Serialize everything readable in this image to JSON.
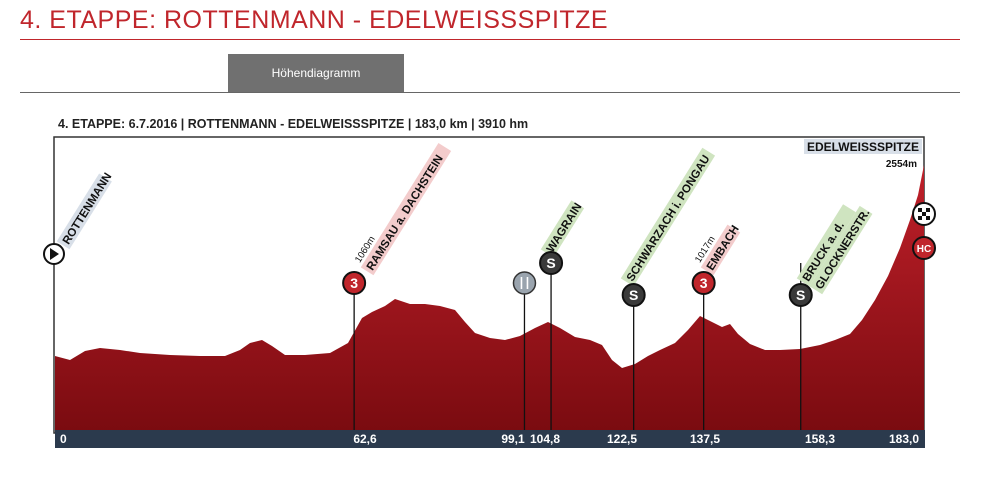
{
  "page_title": "4. ETAPPE: ROTTENMANN - EDELWEISSSPITZE",
  "tabs": [
    {
      "label": "Höhendiagramm",
      "active": true
    }
  ],
  "profile": {
    "header": "4. ETAPPE: 6.7.2016 | ROTTENMANN - EDELWEISSSPITZE | 183,0 km | 3910 hm",
    "summit": {
      "label": "EDELWEISSSPITZE",
      "elevation": "2554m"
    },
    "total_km": 183.0,
    "colors": {
      "profile_dark": "#8b0f14",
      "profile_mid": "#c0202a",
      "axis_bar": "#2b3a4d",
      "marker_red": "#c0262c",
      "marker_dark": "#3a3a3a",
      "label_green": "#cfe4c0",
      "label_pink": "#f3cccc",
      "label_blue": "#d8dfe8"
    },
    "km_ticks": [
      "0",
      "62,6",
      "99,1",
      "104,8",
      "122,5",
      "137,5",
      "158,3",
      "183,0"
    ],
    "waypoints": [
      {
        "name": "ROTTENMANN",
        "km": 0,
        "type": "start",
        "icon": "start-arrow-icon",
        "label_color": "#d8dfe8"
      },
      {
        "name": "RAMSAU a. DACHSTEIN",
        "km": 62.6,
        "type": "climb",
        "category": "3",
        "elevation": "1060m",
        "label_color": "#f3cccc"
      },
      {
        "name": "",
        "km": 99.1,
        "type": "feed",
        "icon": "fork-knife-icon"
      },
      {
        "name": "WAGRAIN",
        "km": 104.8,
        "type": "sprint",
        "category": "S",
        "label_color": "#cfe4c0"
      },
      {
        "name": "SCHWARZACH i. PONGAU",
        "km": 122.5,
        "type": "sprint",
        "category": "S",
        "label_color": "#cfe4c0"
      },
      {
        "name": "EMBACH",
        "km": 137.5,
        "type": "climb",
        "category": "3",
        "elevation": "1017m",
        "label_color": "#f3cccc"
      },
      {
        "name": "BRUCK a. d.",
        "name2": "GLOCKNERSTR.",
        "km": 158.3,
        "type": "sprint",
        "category": "S",
        "label_color": "#cfe4c0"
      },
      {
        "name": "",
        "km": 183.0,
        "type": "finish",
        "category": "HC",
        "icon": "finish-flag-icon"
      }
    ]
  }
}
